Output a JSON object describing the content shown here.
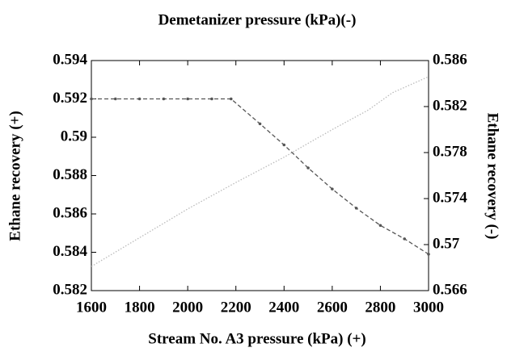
{
  "chart_data": {
    "type": "line",
    "title": "Demetanizer pressure (kPa)(-)",
    "x_label": "Stream No. A3 pressure (kPa) (+)",
    "y_label": "Ethane recovery (+)",
    "y2_label": "Ethane recovery (-)",
    "xlim": [
      1600,
      3000
    ],
    "xticks": [
      1600,
      1800,
      2000,
      2200,
      2400,
      2600,
      2800,
      3000
    ],
    "ylim": [
      0.582,
      0.594
    ],
    "yticks": [
      0.582,
      0.584,
      0.586,
      0.588,
      0.59,
      0.592,
      0.594
    ],
    "y2lim": [
      0.566,
      0.586
    ],
    "y2ticks": [
      0.566,
      0.57,
      0.574,
      0.578,
      0.582,
      0.586
    ],
    "series": [
      {
        "color": "#555555",
        "axis": "y",
        "x": [
          1600,
          1700,
          1800,
          1900,
          2000,
          2100,
          2180,
          2300,
          2400,
          2500,
          2600,
          2700,
          2800,
          2900,
          3000
        ],
        "values": [
          0.592,
          0.592,
          0.592,
          0.592,
          0.592,
          0.592,
          0.592,
          0.5907,
          0.5896,
          0.5884,
          0.5873,
          0.5863,
          0.5854,
          0.5847,
          0.5839
        ]
      },
      {
        "color": "#bbbbbb",
        "axis": "y2",
        "x": [
          1600,
          1800,
          2000,
          2200,
          2400,
          2600,
          2750,
          2850,
          3000
        ],
        "values": [
          0.5681,
          0.5706,
          0.5731,
          0.5754,
          0.5776,
          0.58,
          0.5817,
          0.5832,
          0.5846
        ]
      }
    ]
  }
}
